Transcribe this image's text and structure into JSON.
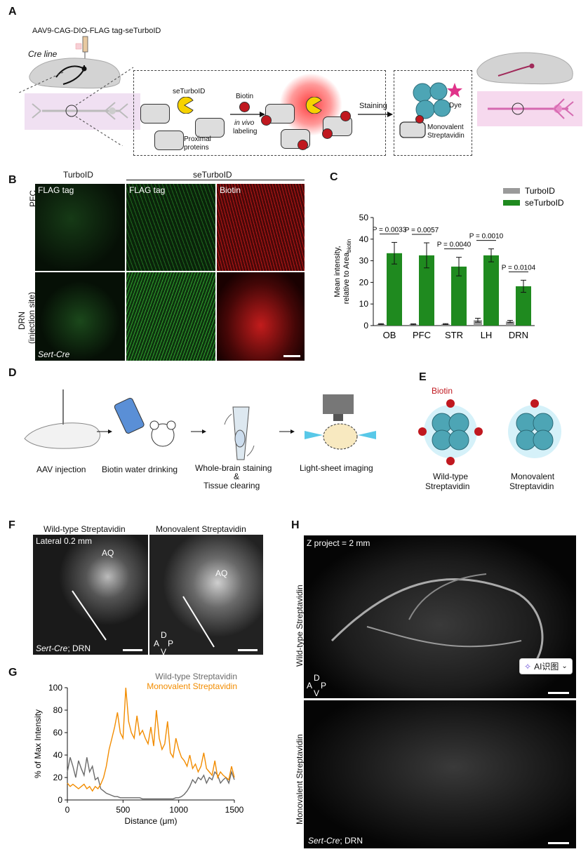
{
  "panels": {
    "a": "A",
    "b": "B",
    "c": "C",
    "d": "D",
    "e": "E",
    "f": "F",
    "g": "G",
    "h": "H"
  },
  "panel_a": {
    "virus": "AAV9-CAG-DIO-FLAG tag-seTurboID",
    "cre_line": "Cre line",
    "seturboid": "seTurboID",
    "biotin": "Biotin",
    "in_vivo": "in vivo",
    "labeling": "labeling",
    "proximal": "Proximal",
    "proteins": "proteins",
    "staining": "Staining",
    "dye": "Dye",
    "monovalent": "Monovalent",
    "streptavidin": "Streptavidin",
    "b_letter": "B"
  },
  "panel_b": {
    "turboid": "TurboID",
    "seturboid": "seTurboID",
    "flag1": "FLAG tag",
    "flag2": "FLAG tag",
    "biotin": "Biotin",
    "pfc": "PFC",
    "drn": "DRN",
    "injection": "(injection site)",
    "sert": "Sert-Cre"
  },
  "panel_d": {
    "aav": "AAV injection",
    "water": "Biotin water drinking",
    "staining": "Whole-brain staining",
    "amp": "&",
    "clearing": "Tissue clearing",
    "lightsheet": "Light-sheet imaging"
  },
  "panel_e": {
    "biotin": "Biotin",
    "wt1": "Wild-type",
    "wt2": "Streptavidin",
    "mv1": "Monovalent",
    "mv2": "Streptavidin"
  },
  "panel_f": {
    "wt": "Wild-type Streptavidin",
    "mv": "Monovalent Streptavidin",
    "lateral": "Lateral 0.2 mm",
    "aq1": "AQ",
    "aq2": "AQ",
    "sert": "Sert-Cre",
    "drn": "; DRN",
    "d": "D",
    "v": "V",
    "a": "A",
    "p": "P"
  },
  "panel_h": {
    "zproject": "Z project = 2 mm",
    "wt": "Wild-type Streptavidin",
    "mv": "Monovalent Streptavidin",
    "sert": "Sert-Cre",
    "drn": "; DRN",
    "d": "D",
    "v": "V",
    "a": "A",
    "p": "P",
    "ai_button": "AI识图"
  },
  "colors": {
    "turboid": "#9a9a9a",
    "seturboid": "#1f8a1f",
    "wt_line": "#6b6b6b",
    "mv_line": "#f28c00",
    "biotin_red": "#c0181f"
  },
  "chart_data": [
    {
      "type": "bar",
      "panel": "C",
      "ylabel": "Mean intensity, relative to Area",
      "ylabel_sub": "biotin",
      "ylim": [
        0,
        50
      ],
      "yticks": [
        0,
        10,
        20,
        30,
        40,
        50
      ],
      "categories": [
        "OB",
        "PFC",
        "STR",
        "LH",
        "DRN"
      ],
      "series": [
        {
          "name": "TurboID",
          "values": [
            0.7,
            0.6,
            0.7,
            2.5,
            1.9
          ],
          "errors": [
            0.2,
            0.2,
            0.2,
            0.9,
            0.5
          ]
        },
        {
          "name": "seTurboID",
          "values": [
            33.5,
            32.5,
            27.3,
            32.5,
            18.2
          ],
          "errors": [
            5.0,
            5.8,
            4.3,
            3.0,
            2.8
          ]
        }
      ],
      "pvalues": [
        "P = 0.0033",
        "P = 0.0057",
        "P = 0.0040",
        "P = 0.0010",
        "P = 0.0104"
      ],
      "legend": "top-right"
    },
    {
      "type": "line",
      "panel": "G",
      "xlabel": "Distance (μm)",
      "ylabel": "% of Max Intensity",
      "xlim": [
        0,
        1500
      ],
      "ylim": [
        0,
        100
      ],
      "xticks": [
        0,
        500,
        1000,
        1500
      ],
      "yticks": [
        0,
        20,
        40,
        60,
        80,
        100
      ],
      "series": [
        {
          "name": "Wild-type Streptavidin",
          "x": [
            0,
            25,
            50,
            75,
            100,
            125,
            150,
            175,
            200,
            225,
            250,
            275,
            300,
            325,
            350,
            375,
            400,
            425,
            450,
            475,
            500,
            525,
            550,
            575,
            600,
            625,
            650,
            675,
            700,
            725,
            750,
            775,
            800,
            825,
            850,
            875,
            900,
            925,
            950,
            975,
            1000,
            1025,
            1050,
            1075,
            1100,
            1125,
            1150,
            1175,
            1200,
            1225,
            1250,
            1275,
            1300,
            1325,
            1350,
            1375,
            1400,
            1425,
            1450,
            1475,
            1500
          ],
          "y": [
            25,
            38,
            30,
            20,
            35,
            28,
            22,
            38,
            25,
            30,
            18,
            20,
            10,
            8,
            6,
            5,
            4,
            3,
            3,
            2,
            2,
            2,
            2,
            2,
            2,
            2,
            2,
            1,
            1,
            1,
            1,
            1,
            1,
            1,
            1,
            1,
            1,
            1,
            1,
            2,
            2,
            3,
            5,
            8,
            12,
            18,
            15,
            20,
            18,
            22,
            15,
            20,
            18,
            25,
            22,
            15,
            18,
            20,
            15,
            25,
            18
          ]
        },
        {
          "name": "Monovalent Streptavidin",
          "x": [
            0,
            25,
            50,
            75,
            100,
            125,
            150,
            175,
            200,
            225,
            250,
            275,
            300,
            325,
            350,
            375,
            400,
            425,
            450,
            475,
            500,
            525,
            550,
            575,
            600,
            625,
            650,
            675,
            700,
            725,
            750,
            775,
            800,
            825,
            850,
            875,
            900,
            925,
            950,
            975,
            1000,
            1025,
            1050,
            1075,
            1100,
            1125,
            1150,
            1175,
            1200,
            1225,
            1250,
            1275,
            1300,
            1325,
            1350,
            1375,
            1400,
            1425,
            1450,
            1475,
            1500
          ],
          "y": [
            15,
            12,
            14,
            12,
            10,
            12,
            14,
            10,
            12,
            8,
            12,
            10,
            14,
            20,
            30,
            45,
            55,
            65,
            78,
            60,
            55,
            100,
            70,
            60,
            55,
            75,
            58,
            62,
            55,
            50,
            65,
            48,
            80,
            55,
            45,
            50,
            70,
            42,
            38,
            55,
            45,
            38,
            35,
            30,
            40,
            28,
            32,
            25,
            30,
            42,
            28,
            25,
            22,
            35,
            20,
            25,
            22,
            20,
            18,
            30,
            20
          ]
        }
      ],
      "legend": "top-right"
    }
  ]
}
